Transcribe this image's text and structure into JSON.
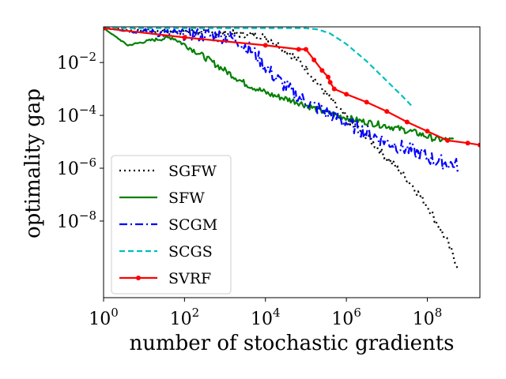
{
  "chart_data": {
    "type": "line",
    "title": "",
    "xlabel": "number of stochastic gradients",
    "ylabel": "optimality gap",
    "xscale": "log",
    "yscale": "log",
    "xlim_exp": [
      0,
      9.3
    ],
    "ylim_exp": [
      -10.9,
      -0.65
    ],
    "legend_position": "lower-left",
    "x_ticks": [
      {
        "base": "10",
        "exp": "0",
        "value": 0
      },
      {
        "base": "10",
        "exp": "2",
        "value": 2
      },
      {
        "base": "10",
        "exp": "4",
        "value": 4
      },
      {
        "base": "10",
        "exp": "6",
        "value": 6
      },
      {
        "base": "10",
        "exp": "8",
        "value": 8
      }
    ],
    "y_ticks": [
      {
        "base": "10",
        "exp": "−8",
        "value": -8
      },
      {
        "base": "10",
        "exp": "−6",
        "value": -6
      },
      {
        "base": "10",
        "exp": "−4",
        "value": -4
      },
      {
        "base": "10",
        "exp": "−2",
        "value": -2
      }
    ],
    "series": [
      {
        "name": "SGFW",
        "color": "#000000",
        "dash": "2,4",
        "marker": false,
        "noise": 0.15,
        "points": [
          [
            0,
            -0.7
          ],
          [
            1,
            -0.78
          ],
          [
            2,
            -0.84
          ],
          [
            3,
            -0.9
          ],
          [
            3.8,
            -0.95
          ],
          [
            4.1,
            -1.1
          ],
          [
            4.5,
            -1.5
          ],
          [
            5,
            -2.2
          ],
          [
            5.5,
            -3.2
          ],
          [
            6,
            -4.1
          ],
          [
            6.5,
            -4.8
          ],
          [
            7,
            -5.6
          ],
          [
            7.5,
            -6.4
          ],
          [
            8,
            -7.4
          ],
          [
            8.5,
            -8.8
          ],
          [
            8.75,
            -9.7
          ]
        ]
      },
      {
        "name": "SFW",
        "color": "#008000",
        "dash": "",
        "marker": false,
        "noise": 0.12,
        "points": [
          [
            0,
            -0.7
          ],
          [
            0.6,
            -1.35
          ],
          [
            1.2,
            -1.15
          ],
          [
            1.7,
            -1.05
          ],
          [
            2.3,
            -1.6
          ],
          [
            2.9,
            -2.2
          ],
          [
            3.5,
            -2.8
          ],
          [
            4.1,
            -3.2
          ],
          [
            4.8,
            -3.5
          ],
          [
            5.5,
            -3.9
          ],
          [
            6.3,
            -4.2
          ],
          [
            7,
            -4.4
          ],
          [
            7.7,
            -4.65
          ],
          [
            8.2,
            -4.9
          ],
          [
            8.65,
            -4.95
          ]
        ]
      },
      {
        "name": "SCGM",
        "color": "#0000ff",
        "dash": "10,4,2,4",
        "marker": false,
        "noise": 0.28,
        "points": [
          [
            0,
            -0.7
          ],
          [
            1.5,
            -0.9
          ],
          [
            3,
            -1.0
          ],
          [
            3.3,
            -1.15
          ],
          [
            3.7,
            -1.6
          ],
          [
            4.2,
            -2.5
          ],
          [
            4.8,
            -3.3
          ],
          [
            5.5,
            -3.9
          ],
          [
            6.3,
            -4.5
          ],
          [
            7,
            -5.0
          ],
          [
            7.7,
            -5.4
          ],
          [
            8.3,
            -5.75
          ],
          [
            8.75,
            -5.9
          ]
        ]
      },
      {
        "name": "SCGS",
        "color": "#00bfbf",
        "dash": "7,4",
        "marker": false,
        "noise": 0,
        "points": [
          [
            0,
            -0.7
          ],
          [
            2,
            -0.7
          ],
          [
            4,
            -0.7
          ],
          [
            5,
            -0.7
          ],
          [
            5.3,
            -0.75
          ],
          [
            5.6,
            -0.9
          ],
          [
            6,
            -1.3
          ],
          [
            6.5,
            -1.95
          ],
          [
            7,
            -2.7
          ],
          [
            7.4,
            -3.3
          ],
          [
            7.65,
            -3.7
          ]
        ]
      },
      {
        "name": "SVRF",
        "color": "#ff0000",
        "dash": "",
        "marker": true,
        "noise": 0,
        "points": [
          [
            0,
            -0.7
          ],
          [
            2,
            -1.05
          ],
          [
            4,
            -1.35
          ],
          [
            4.82,
            -1.5
          ],
          [
            5,
            -1.5
          ],
          [
            5.2,
            -1.9
          ],
          [
            5.4,
            -2.3
          ],
          [
            5.55,
            -2.55
          ],
          [
            5.6,
            -2.75
          ],
          [
            5.7,
            -3.0
          ],
          [
            6,
            -3.2
          ],
          [
            6.5,
            -3.5
          ],
          [
            7,
            -3.85
          ],
          [
            7.5,
            -4.25
          ],
          [
            8,
            -4.6
          ],
          [
            8.5,
            -4.95
          ],
          [
            9,
            -5.05
          ],
          [
            9.3,
            -5.12
          ]
        ]
      }
    ]
  }
}
